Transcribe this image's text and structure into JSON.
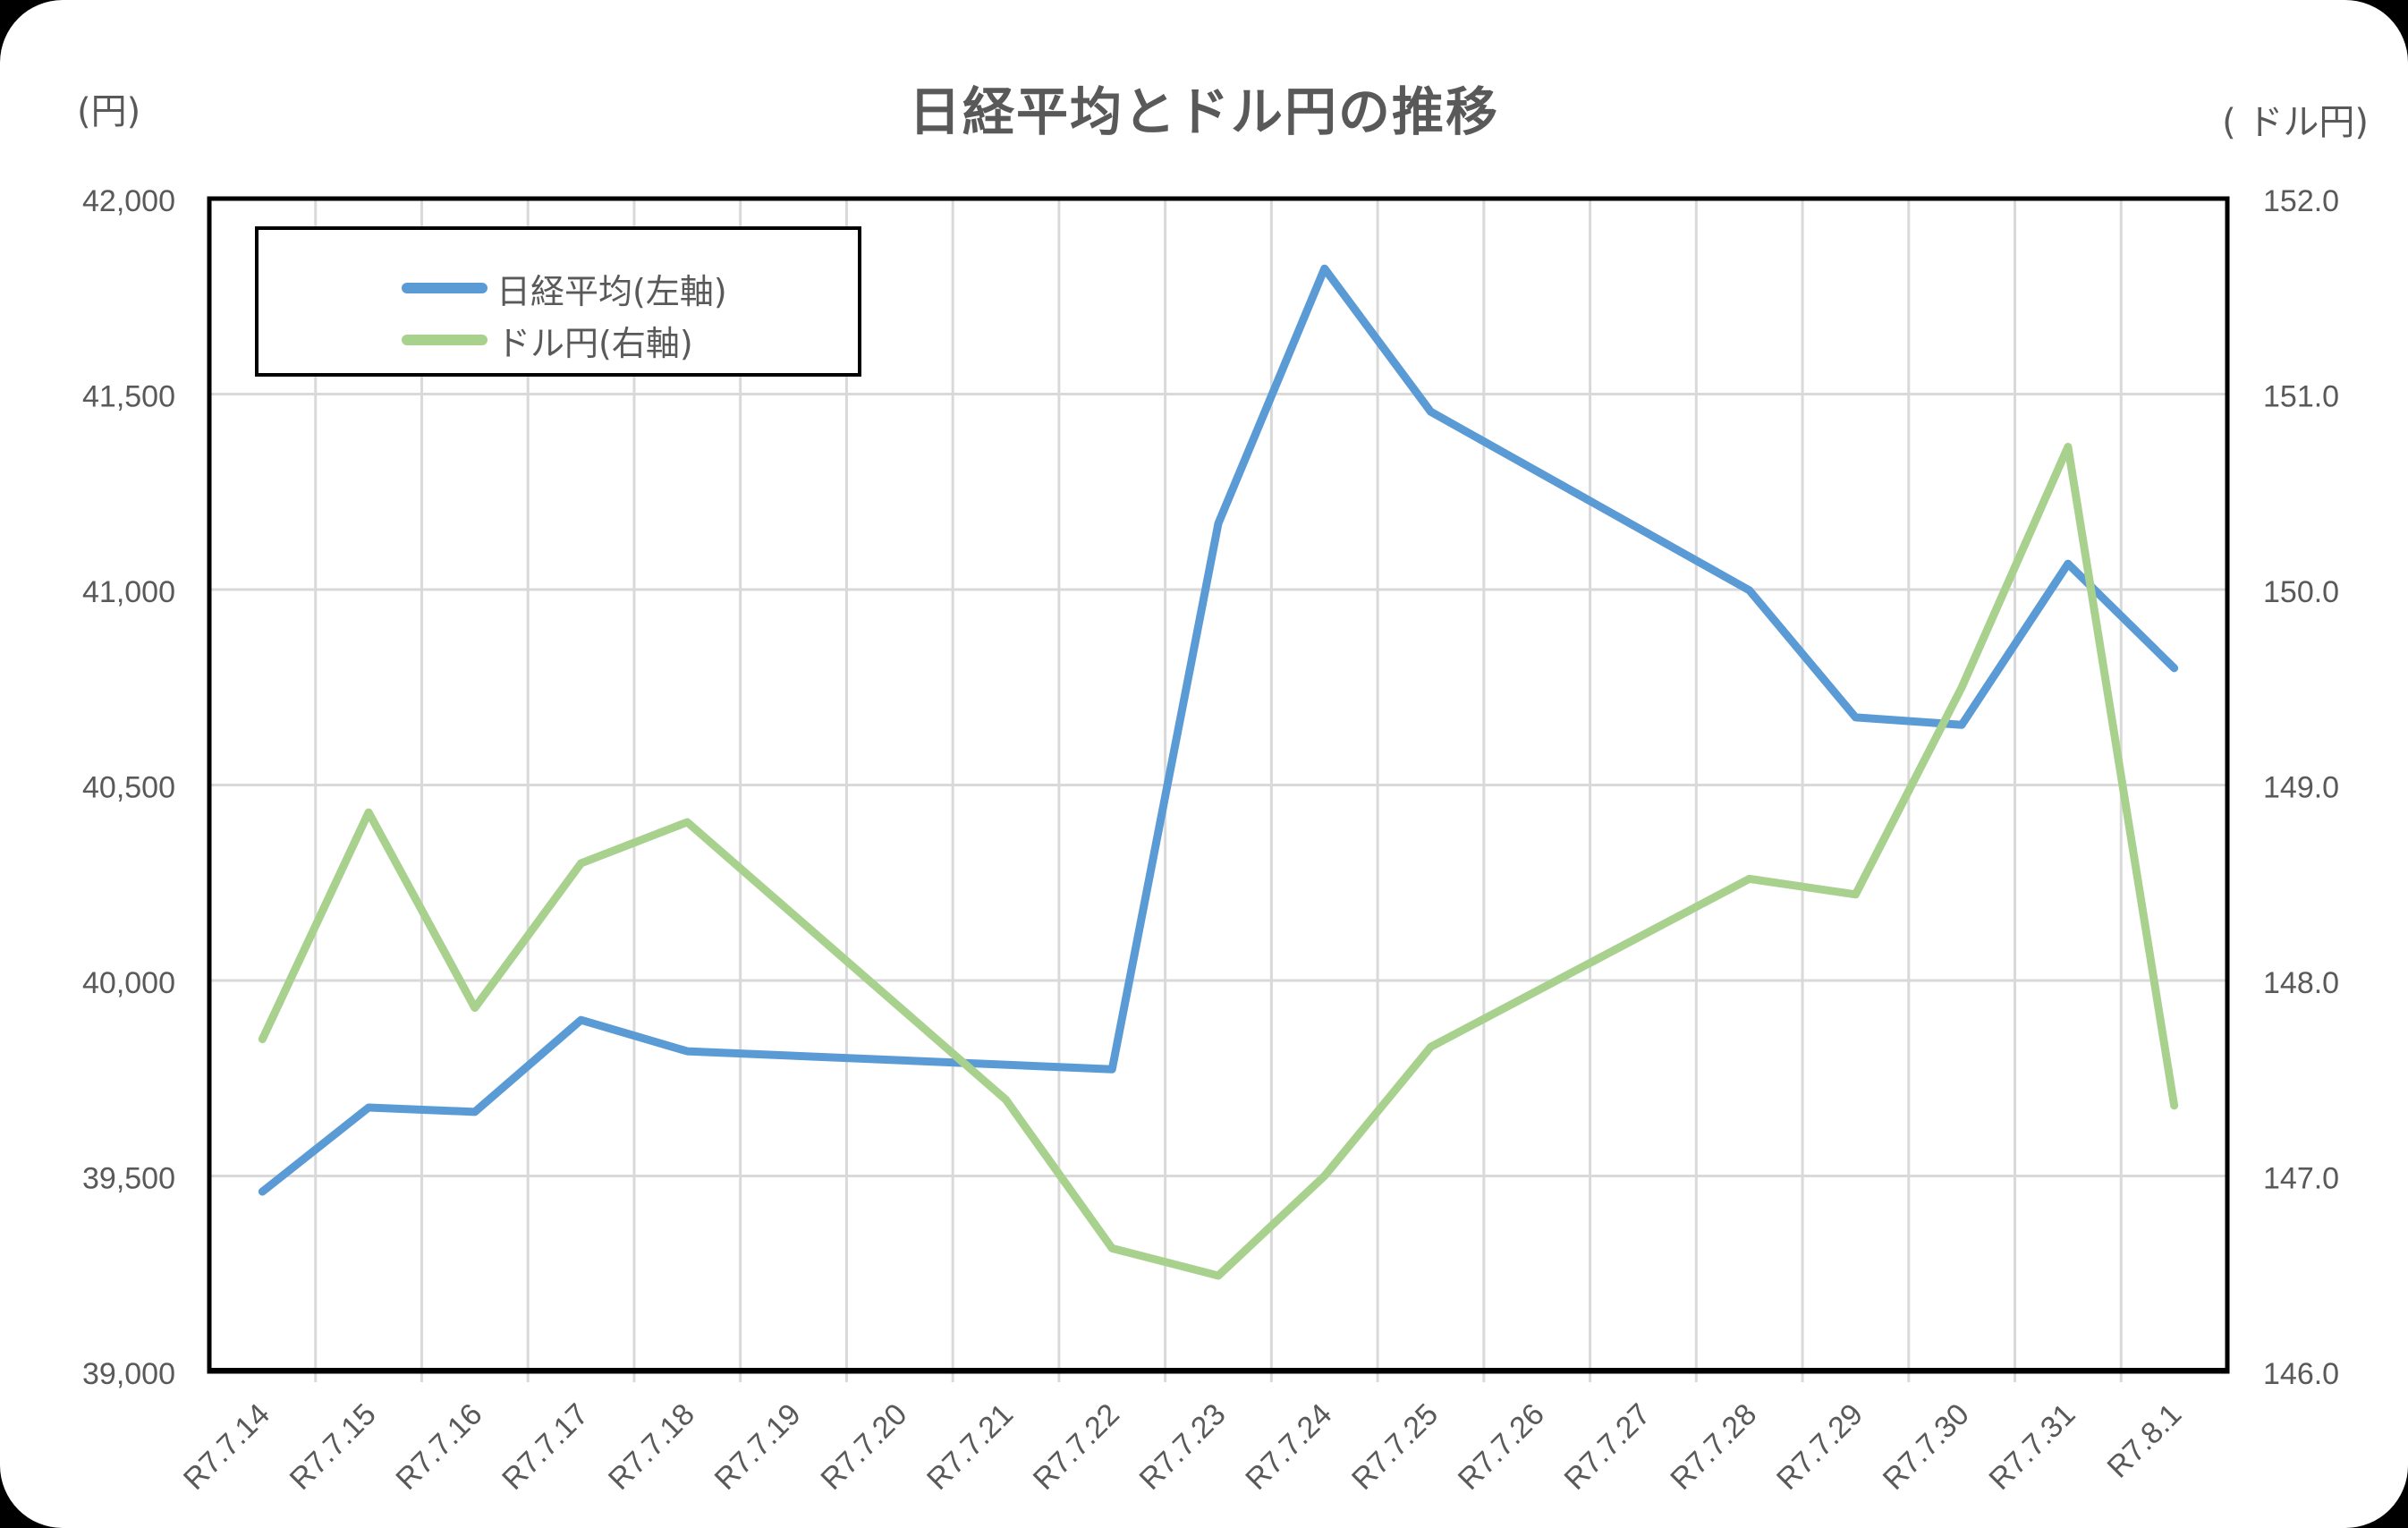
{
  "chart": {
    "title": "日経平均とドル円の推移",
    "left_unit": "(円)",
    "right_unit": "( ドル円)"
  },
  "legend": {
    "items": [
      {
        "label": "日経平均(左軸)",
        "color": "#5B9BD5"
      },
      {
        "label": "ドル円(右軸)",
        "color": "#A9D18E"
      }
    ]
  },
  "chart_data": {
    "type": "line",
    "title": "日経平均とドル円の推移",
    "xlabel": "",
    "ylabel": "(円)",
    "y2label": "( ドル円)",
    "categories": [
      "R7.7.14",
      "R7.7.15",
      "R7.7.16",
      "R7.7.17",
      "R7.7.18",
      "R7.7.19",
      "R7.7.20",
      "R7.7.21",
      "R7.7.22",
      "R7.7.23",
      "R7.7.24",
      "R7.7.25",
      "R7.7.26",
      "R7.7.27",
      "R7.7.28",
      "R7.7.29",
      "R7.7.30",
      "R7.7.31",
      "R7.8.1"
    ],
    "series": [
      {
        "name": "日経平均(左軸)",
        "axis": "left",
        "color": "#5B9BD5",
        "values": [
          39460,
          39675,
          39664,
          39899,
          39819,
          null,
          null,
          null,
          39773,
          41169,
          41821,
          41455,
          null,
          null,
          40998,
          40673,
          40654,
          41066,
          40799
        ]
      },
      {
        "name": "ドル円(右軸)",
        "axis": "right",
        "color": "#A9D18E",
        "values": [
          147.7,
          148.86,
          147.86,
          148.6,
          148.81,
          null,
          null,
          147.39,
          146.63,
          146.49,
          147.0,
          147.66,
          null,
          null,
          148.52,
          148.44,
          149.5,
          150.73,
          147.36
        ]
      }
    ],
    "ylim": [
      39000,
      42000
    ],
    "y2lim": [
      146.0,
      152.0
    ],
    "y_ticks": [
      "39,000",
      "39,500",
      "40,000",
      "40,500",
      "41,000",
      "41,500",
      "42,000"
    ],
    "y2_ticks": [
      "146.0",
      "147.0",
      "148.0",
      "149.0",
      "150.0",
      "151.0",
      "152.0"
    ],
    "grid": true,
    "legend_position": "top-left inside"
  }
}
